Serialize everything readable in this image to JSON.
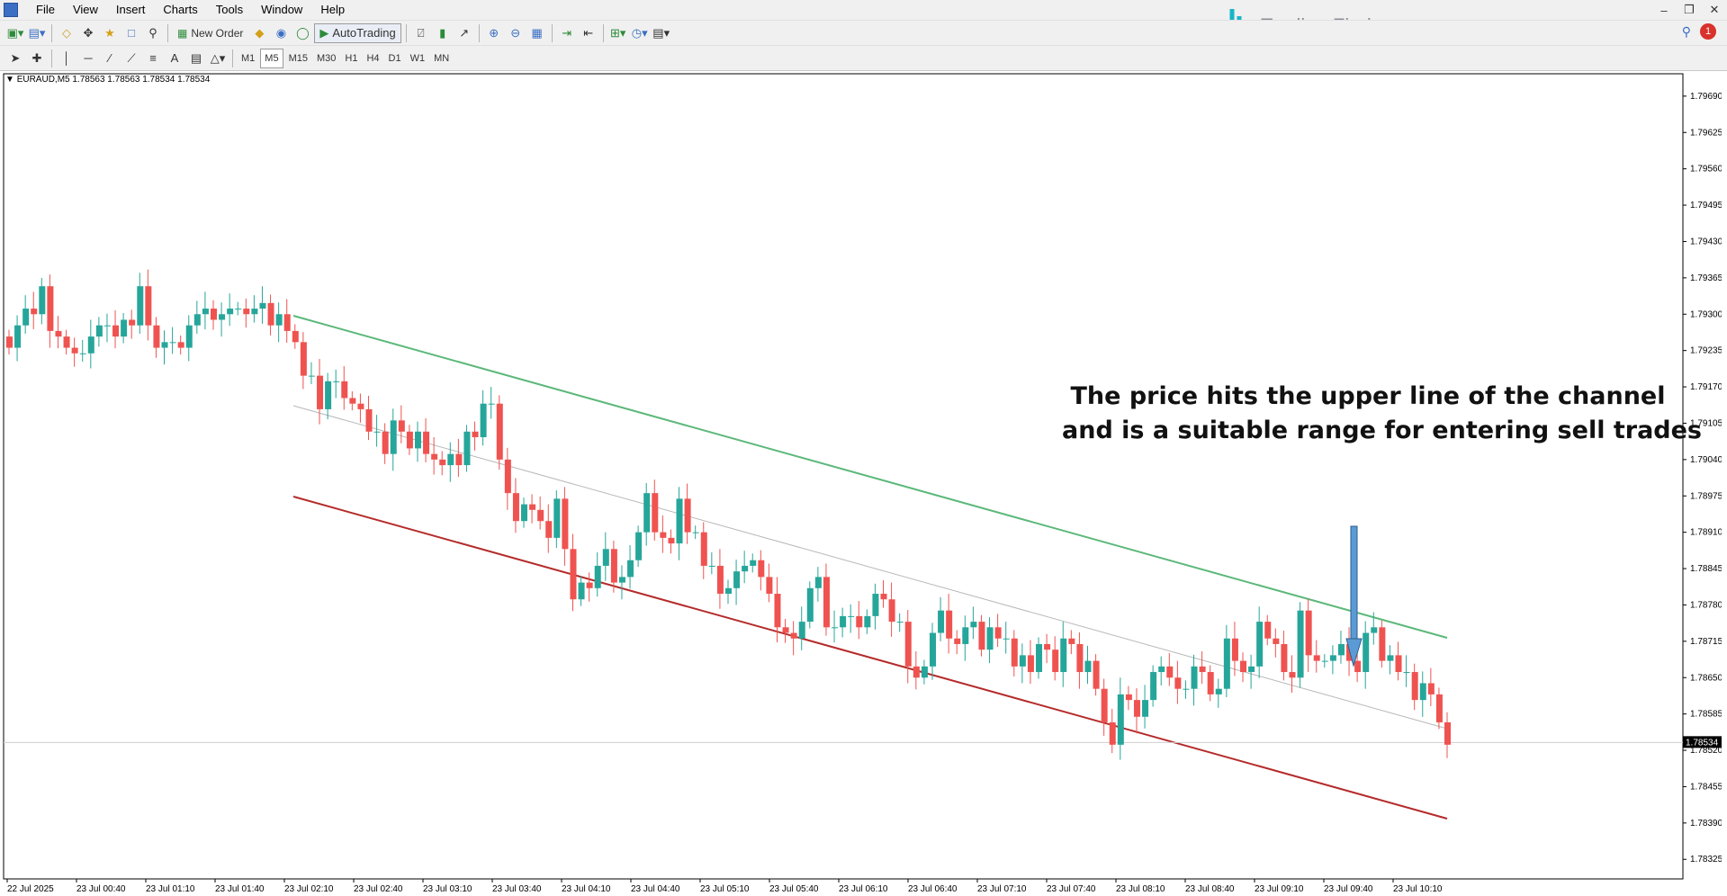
{
  "menu": [
    "File",
    "View",
    "Insert",
    "Charts",
    "Tools",
    "Window",
    "Help"
  ],
  "toolbar": {
    "new_order": "New Order",
    "autotrading": "AutoTrading",
    "timeframes": [
      "M1",
      "M5",
      "M15",
      "M30",
      "H1",
      "H4",
      "D1",
      "W1",
      "MN"
    ],
    "active_timeframe": "M5"
  },
  "brand": {
    "name": "Trading Finder",
    "color": "#17b5c9"
  },
  "notifications": {
    "count": "1"
  },
  "chart": {
    "header": "EURAUD,M5  1.78563 1.78563 1.78534 1.78534",
    "current_price": "1.78534",
    "colors": {
      "bull": "#26a69a",
      "bear": "#ef5350",
      "upper_line": "#5cb87a",
      "lower_line": "#b52a2a",
      "mid_line": "#b8b8b8",
      "arrow": "#5b9bd5"
    },
    "annotation": [
      "The price hits the upper line of the channel",
      "and is a suitable range for entering sell trades"
    ]
  },
  "chart_data": {
    "type": "candlestick",
    "symbol": "EURAUD",
    "timeframe": "M5",
    "ylim": [
      1.7829,
      1.7973
    ],
    "y_ticks": [
      "1.79690",
      "1.79625",
      "1.79560",
      "1.79495",
      "1.79430",
      "1.79365",
      "1.79300",
      "1.79235",
      "1.79170",
      "1.79105",
      "1.79040",
      "1.78975",
      "1.78910",
      "1.78845",
      "1.78780",
      "1.78715",
      "1.78650",
      "1.78585",
      "1.78520",
      "1.78455",
      "1.78390",
      "1.78325"
    ],
    "x_labels": [
      "22 Jul 2025",
      "23 Jul 00:40",
      "23 Jul 01:10",
      "23 Jul 01:40",
      "23 Jul 02:10",
      "23 Jul 02:40",
      "23 Jul 03:10",
      "23 Jul 03:40",
      "23 Jul 04:10",
      "23 Jul 04:40",
      "23 Jul 05:10",
      "23 Jul 05:40",
      "23 Jul 06:10",
      "23 Jul 06:40",
      "23 Jul 07:10",
      "23 Jul 07:40",
      "23 Jul 08:10",
      "23 Jul 08:40",
      "23 Jul 09:10",
      "23 Jul 09:40",
      "23 Jul 10:10"
    ],
    "candles_close": [
      1.7924,
      1.7928,
      1.7931,
      1.793,
      1.7935,
      1.7927,
      1.7926,
      1.7924,
      1.7923,
      1.7923,
      1.7926,
      1.7928,
      1.7928,
      1.7926,
      1.7929,
      1.7928,
      1.7935,
      1.7928,
      1.7924,
      1.7925,
      1.7925,
      1.7924,
      1.7928,
      1.793,
      1.7931,
      1.7929,
      1.793,
      1.7931,
      1.7931,
      1.793,
      1.7931,
      1.7932,
      1.7928,
      1.793,
      1.7927,
      1.7925,
      1.7919,
      1.7919,
      1.7913,
      1.7918,
      1.7918,
      1.7915,
      1.7914,
      1.7913,
      1.7909,
      1.7909,
      1.7905,
      1.7911,
      1.7909,
      1.7906,
      1.7909,
      1.7905,
      1.7904,
      1.7903,
      1.7905,
      1.7903,
      1.7909,
      1.7908,
      1.7914,
      1.7914,
      1.7904,
      1.7898,
      1.7893,
      1.7896,
      1.7895,
      1.7893,
      1.789,
      1.7897,
      1.7888,
      1.7879,
      1.7882,
      1.7881,
      1.7885,
      1.7888,
      1.7882,
      1.7883,
      1.7886,
      1.7891,
      1.7898,
      1.7891,
      1.789,
      1.7889,
      1.7897,
      1.7891,
      1.7891,
      1.7885,
      1.7885,
      1.788,
      1.7881,
      1.7884,
      1.7885,
      1.7886,
      1.7883,
      1.788,
      1.7874,
      1.7873,
      1.7872,
      1.7875,
      1.7881,
      1.7883,
      1.7874,
      1.7874,
      1.7876,
      1.7876,
      1.7874,
      1.7876,
      1.788,
      1.7879,
      1.7875,
      1.7875,
      1.7867,
      1.7865,
      1.7867,
      1.7873,
      1.7877,
      1.7872,
      1.7871,
      1.7874,
      1.7875,
      1.787,
      1.7874,
      1.7872,
      1.7872,
      1.7867,
      1.7869,
      1.7866,
      1.7871,
      1.787,
      1.7866,
      1.7872,
      1.7871,
      1.7866,
      1.7868,
      1.7863,
      1.7857,
      1.7853,
      1.7862,
      1.7861,
      1.7858,
      1.7861,
      1.7866,
      1.7867,
      1.7865,
      1.7863,
      1.7863,
      1.7867,
      1.7866,
      1.7862,
      1.7863,
      1.7872,
      1.7868,
      1.7866,
      1.7867,
      1.7875,
      1.7872,
      1.7871,
      1.7866,
      1.7865,
      1.7877,
      1.7869,
      1.7868,
      1.7868,
      1.7869,
      1.7871,
      1.7868,
      1.7866,
      1.7873,
      1.7874,
      1.7868,
      1.7869,
      1.7866,
      1.7866,
      1.7861,
      1.7864,
      1.7862,
      1.7857,
      1.7853
    ]
  }
}
